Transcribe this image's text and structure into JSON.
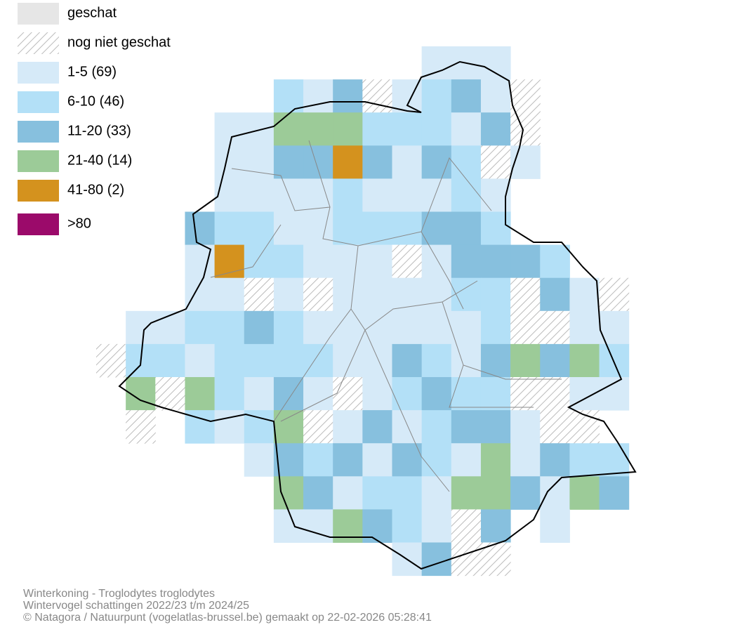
{
  "legend": [
    {
      "label": "geschat",
      "color": "#e6e6e6"
    },
    {
      "label": "nog niet geschat",
      "color": "hatch"
    },
    {
      "label": "1-5 (69)",
      "color": "#d6eaf8"
    },
    {
      "label": "6-10 (46)",
      "color": "#b3e0f7"
    },
    {
      "label": "11-20 (33)",
      "color": "#87c0de"
    },
    {
      "label": "21-40 (14)",
      "color": "#9ccb98"
    },
    {
      "label": "41-80 (2)",
      "color": "#d4921e"
    },
    {
      "label": ">80",
      "color": "#9b0a6a"
    }
  ],
  "footer": [
    "Winterkoning - Troglodytes troglodytes",
    "Wintervogel schattingen 2022/23 t/m 2024/25",
    "© Natagora / Natuurpunt (vogelatlas-brussel.be) gemaakt op 22-02-2026 05:28:41"
  ]
}
